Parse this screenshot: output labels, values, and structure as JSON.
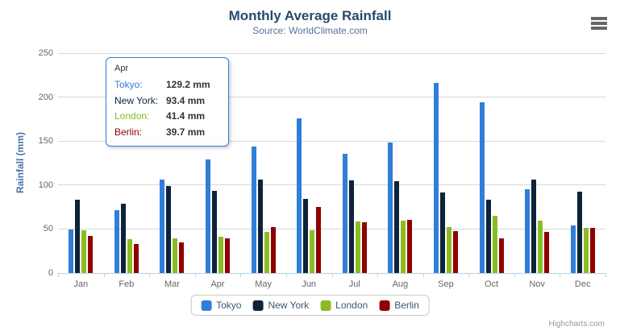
{
  "chart": {
    "title": "Monthly Average Rainfall",
    "subtitle": "Source: WorldClimate.com",
    "y_axis_title": "Rainfall (mm)",
    "credits": "Highcharts.com"
  },
  "chart_data": {
    "type": "bar",
    "subtype": "grouped-vertical-columns",
    "title": "Monthly Average Rainfall",
    "subtitle": "Source: WorldClimate.com",
    "xlabel": "",
    "ylabel": "Rainfall (mm)",
    "ylim": [
      0,
      250
    ],
    "yticks": [
      0,
      50,
      100,
      150,
      200,
      250
    ],
    "grid": true,
    "legend_position": "bottom",
    "categories": [
      "Jan",
      "Feb",
      "Mar",
      "Apr",
      "May",
      "Jun",
      "Jul",
      "Aug",
      "Sep",
      "Oct",
      "Nov",
      "Dec"
    ],
    "series": [
      {
        "name": "Tokyo",
        "color": "#2f7ed8",
        "values": [
          49.9,
          71.5,
          106.4,
          129.2,
          144.0,
          176.0,
          135.6,
          148.5,
          216.4,
          194.1,
          95.6,
          54.4
        ]
      },
      {
        "name": "New York",
        "color": "#0d233a",
        "values": [
          83.6,
          78.8,
          98.5,
          93.4,
          106.0,
          84.5,
          105.0,
          104.3,
          91.2,
          83.5,
          106.6,
          92.3
        ]
      },
      {
        "name": "London",
        "color": "#8bbc21",
        "values": [
          48.9,
          38.8,
          39.3,
          41.4,
          47.0,
          48.3,
          59.0,
          59.6,
          52.4,
          65.2,
          59.3,
          51.2
        ]
      },
      {
        "name": "Berlin",
        "color": "#910000",
        "values": [
          42.4,
          33.2,
          34.5,
          39.7,
          52.6,
          75.5,
          57.4,
          60.4,
          47.6,
          39.1,
          46.8,
          51.1
        ]
      }
    ]
  },
  "tooltip": {
    "header": "Apr",
    "border_color": "#2f7ed8",
    "rows": [
      {
        "label": "Tokyo:",
        "value": "129.2 mm",
        "color": "#2f7ed8"
      },
      {
        "label": "New York:",
        "value": "93.4 mm",
        "color": "#0d233a"
      },
      {
        "label": "London:",
        "value": "41.4 mm",
        "color": "#8bbc21"
      },
      {
        "label": "Berlin:",
        "value": "39.7 mm",
        "color": "#910000"
      }
    ]
  },
  "icons": {
    "export_menu": "hamburger"
  },
  "colors": {
    "title": "#274b6d",
    "subtitle": "#55759e",
    "axis_title": "#4572a7",
    "axis_labels": "#666666",
    "grid_line": "#d8d8d8",
    "axis_line": "#c0d0e0",
    "legend_text": "#3e576f",
    "credits": "#999999"
  }
}
